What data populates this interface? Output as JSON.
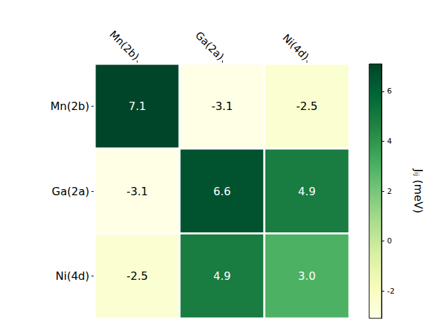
{
  "chart_data": {
    "type": "heatmap",
    "x_categories": [
      "Mn(2b)",
      "Ga(2a)",
      "Ni(4d)"
    ],
    "y_categories": [
      "Mn(2b)",
      "Ga(2a)",
      "Ni(4d)"
    ],
    "cells": [
      [
        7.1,
        -3.1,
        -2.5
      ],
      [
        -3.1,
        6.6,
        4.9
      ],
      [
        -2.5,
        4.9,
        3.0
      ]
    ],
    "value_labels": [
      [
        "7.1",
        "-3.1",
        "-2.5"
      ],
      [
        "-3.1",
        "6.6",
        "4.9"
      ],
      [
        "-2.5",
        "4.9",
        "3.0"
      ]
    ],
    "data_labels": true,
    "colorbar_label": "Jᵢⱼ (meV)",
    "colorbar_lim": [
      -3.1,
      7.1
    ],
    "colorbar_ticks": [
      -2,
      0,
      2,
      4,
      6
    ],
    "colors": [
      "#ffffe5",
      "#f7fcb9",
      "#d9f0a3",
      "#addd8e",
      "#78c679",
      "#41ab5d",
      "#238443",
      "#006837",
      "#004529"
    ]
  }
}
